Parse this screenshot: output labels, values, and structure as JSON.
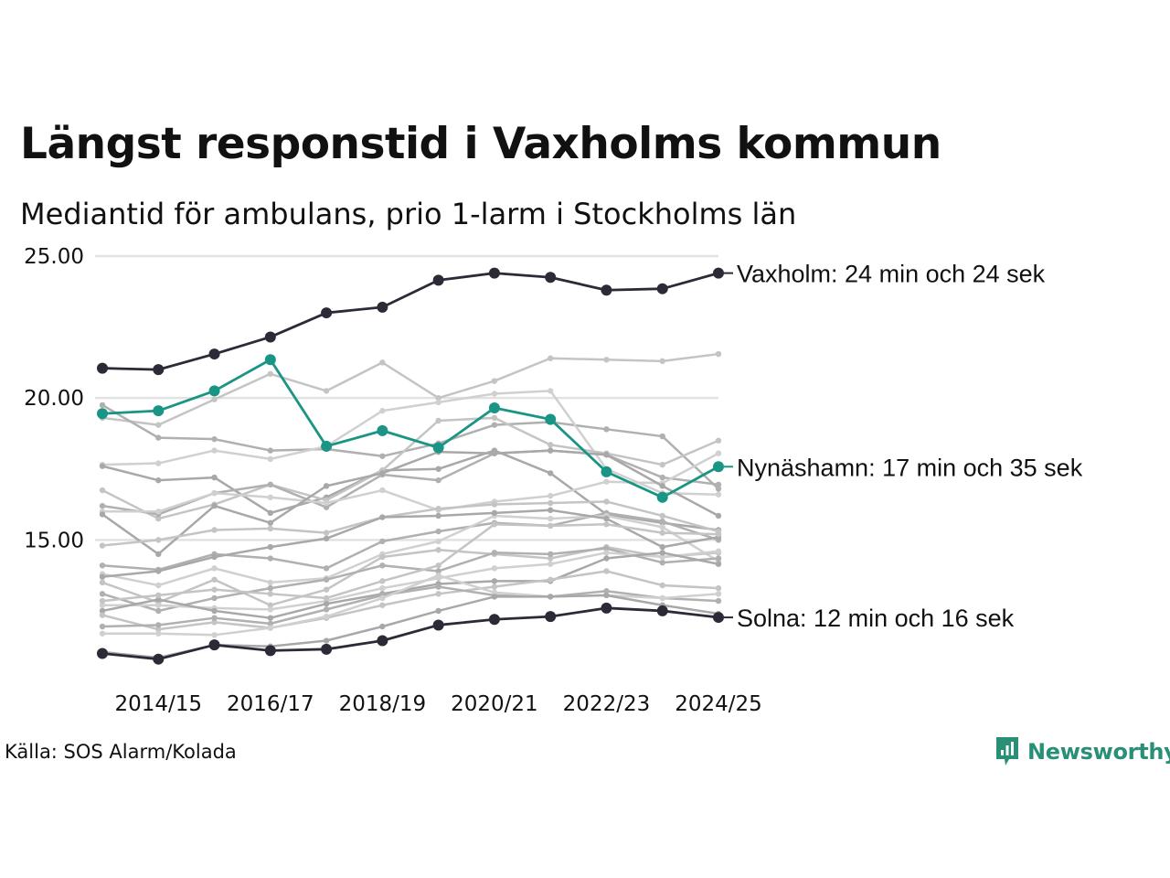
{
  "chart_data": {
    "type": "line",
    "title": "Längst responstid i Vaxholms kommun",
    "subtitle": "Mediantid för ambulans, prio 1-larm i Stockholms län",
    "source": "Källa: SOS Alarm/Kolada",
    "brand": "Newsworthy",
    "ylim": [
      10.5,
      25.0
    ],
    "y_ticks": [
      "15.00",
      "20.00",
      "25.00"
    ],
    "y_tick_values": [
      15,
      20,
      25
    ],
    "x": [
      "2013/14",
      "2014/15",
      "2015/16",
      "2016/17",
      "2017/18",
      "2018/19",
      "2019/20",
      "2020/21",
      "2021/22",
      "2022/23",
      "2023/24",
      "2024/25"
    ],
    "x_tick_labels": [
      "2014/15",
      "2016/17",
      "2018/19",
      "2020/21",
      "2022/23",
      "2024/25"
    ],
    "highlight": [
      {
        "name": "Vaxholm",
        "label": "Vaxholm: 24 min och 24 sek",
        "color": "#2b2b38",
        "values": [
          21.05,
          21.0,
          21.55,
          22.15,
          23.0,
          23.2,
          24.15,
          24.4,
          24.25,
          23.8,
          23.85,
          24.4
        ]
      },
      {
        "name": "Nynäshamn",
        "label": "Nynäshamn: 17 min och 35 sek",
        "color": "#1a9585",
        "values": [
          19.45,
          19.55,
          20.25,
          21.35,
          18.3,
          18.85,
          18.25,
          19.65,
          19.25,
          17.4,
          16.5,
          17.58
        ]
      },
      {
        "name": "Solna",
        "label": "Solna: 12 min och 16 sek",
        "color": "#2b2b38",
        "values": [
          11.0,
          10.8,
          11.3,
          11.1,
          11.15,
          11.45,
          12.0,
          12.2,
          12.3,
          12.6,
          12.5,
          12.27
        ]
      }
    ],
    "background_series": [
      {
        "values": [
          19.3,
          19.05,
          19.95,
          20.85,
          20.25,
          21.25,
          20.0,
          20.6,
          21.4,
          21.35,
          21.3,
          21.55
        ]
      },
      {
        "values": [
          19.75,
          18.6,
          18.55,
          18.15,
          18.2,
          17.95,
          18.4,
          19.05,
          19.15,
          18.9,
          18.65,
          16.8
        ]
      },
      {
        "values": [
          17.65,
          17.7,
          18.15,
          17.85,
          18.3,
          19.55,
          19.85,
          20.15,
          20.25,
          17.5,
          16.65,
          16.6
        ]
      },
      {
        "values": [
          17.6,
          17.1,
          17.2,
          15.95,
          16.5,
          17.45,
          17.5,
          18.15,
          17.35,
          15.9,
          15.6,
          15.35
        ]
      },
      {
        "values": [
          16.75,
          15.75,
          16.25,
          16.95,
          16.4,
          17.45,
          19.2,
          19.3,
          18.35,
          18.05,
          17.65,
          18.5
        ]
      },
      {
        "values": [
          16.2,
          15.9,
          16.65,
          16.95,
          16.15,
          17.3,
          17.1,
          18.05,
          18.15,
          18.0,
          17.2,
          16.95
        ]
      },
      {
        "values": [
          16.0,
          16.0,
          16.65,
          16.5,
          16.3,
          16.75,
          16.05,
          16.35,
          16.55,
          17.05,
          17.0,
          18.05
        ]
      },
      {
        "values": [
          15.9,
          14.5,
          16.2,
          15.6,
          16.9,
          17.35,
          18.1,
          18.05,
          18.15,
          18.0,
          16.9,
          15.85
        ]
      },
      {
        "values": [
          14.8,
          15.0,
          15.35,
          15.4,
          15.25,
          15.8,
          16.1,
          16.25,
          16.3,
          16.35,
          15.85,
          15.3
        ]
      },
      {
        "values": [
          14.1,
          13.95,
          14.5,
          14.35,
          14.0,
          14.95,
          15.3,
          15.6,
          15.5,
          15.95,
          15.65,
          15.0
        ]
      },
      {
        "values": [
          13.8,
          13.4,
          14.0,
          13.5,
          13.65,
          14.5,
          14.95,
          15.85,
          15.75,
          15.85,
          15.45,
          14.25
        ]
      },
      {
        "values": [
          13.7,
          13.9,
          14.4,
          14.75,
          15.05,
          15.8,
          15.85,
          15.95,
          16.05,
          15.75,
          14.75,
          15.1
        ]
      },
      {
        "values": [
          13.5,
          12.8,
          13.6,
          12.7,
          13.25,
          14.4,
          14.65,
          14.5,
          14.35,
          14.75,
          14.4,
          14.55
        ]
      },
      {
        "values": [
          13.1,
          12.5,
          12.95,
          13.3,
          13.6,
          14.1,
          13.9,
          14.55,
          14.5,
          14.7,
          14.2,
          14.35
        ]
      },
      {
        "values": [
          12.7,
          12.7,
          12.6,
          12.55,
          12.85,
          13.3,
          13.65,
          14.0,
          14.15,
          14.55,
          14.4,
          14.6
        ]
      },
      {
        "values": [
          12.5,
          12.9,
          12.5,
          12.25,
          12.75,
          13.1,
          13.45,
          13.55,
          13.55,
          14.35,
          14.55,
          14.15
        ]
      },
      {
        "values": [
          12.35,
          11.85,
          12.1,
          11.9,
          12.25,
          12.7,
          13.1,
          13.35,
          13.6,
          13.9,
          13.4,
          13.3
        ]
      },
      {
        "values": [
          11.95,
          12.0,
          12.25,
          12.05,
          12.55,
          13.05,
          13.35,
          13.05,
          13.0,
          13.2,
          12.95,
          12.85
        ]
      },
      {
        "values": [
          11.7,
          11.7,
          11.65,
          11.9,
          12.3,
          12.95,
          13.75,
          13.15,
          13.0,
          13.05,
          12.95,
          13.1
        ]
      },
      {
        "values": [
          11.05,
          10.85,
          11.3,
          11.25,
          11.45,
          11.95,
          12.5,
          13.0,
          13.0,
          13.05,
          12.7,
          12.4
        ]
      },
      {
        "values": [
          12.85,
          13.05,
          13.25,
          13.1,
          12.95,
          13.55,
          14.1,
          15.55,
          15.5,
          15.55,
          15.25,
          15.2
        ]
      }
    ],
    "background_colors": [
      "#c4c4c4",
      "#b0b0b0",
      "#d0d0d0",
      "#a8a8a8"
    ]
  }
}
